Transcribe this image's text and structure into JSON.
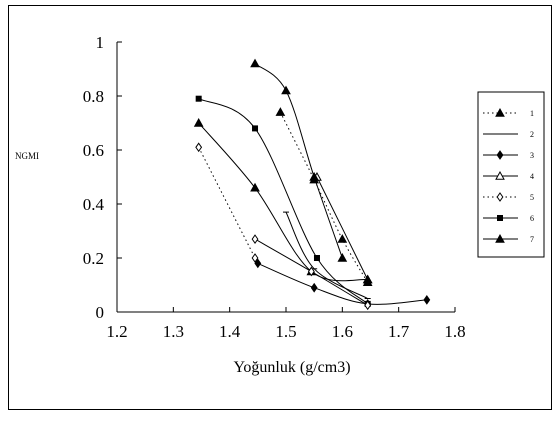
{
  "chart_data": {
    "type": "line",
    "title": "",
    "xlabel": "Yoğunluk (g/cm3)",
    "ylabel": "NGMI",
    "xlim": [
      1.2,
      1.8
    ],
    "ylim": [
      0,
      1
    ],
    "xticks": [
      "1.2",
      "1.3",
      "1.4",
      "1.5",
      "1.6",
      "1.7",
      "1.8"
    ],
    "yticks": [
      "0",
      "0.2",
      "0.4",
      "0.6",
      "0.8",
      "1"
    ],
    "grid": false,
    "legend_position": "right",
    "series": [
      {
        "name": "1",
        "marker": "triangle-filled",
        "dash": "dotted",
        "points": [
          [
            1.49,
            0.74
          ],
          [
            1.55,
            0.49
          ],
          [
            1.6,
            0.27
          ],
          [
            1.645,
            0.11
          ]
        ]
      },
      {
        "name": "2",
        "marker": "line",
        "dash": "solid",
        "points": [
          [
            1.5,
            0.37
          ],
          [
            1.55,
            0.16
          ],
          [
            1.645,
            0.05
          ]
        ]
      },
      {
        "name": "3",
        "marker": "diamond-filled",
        "dash": "solid",
        "points": [
          [
            1.45,
            0.18
          ],
          [
            1.55,
            0.09
          ],
          [
            1.645,
            0.03
          ],
          [
            1.75,
            0.045
          ]
        ]
      },
      {
        "name": "4",
        "marker": "triangle-open",
        "dash": "solid",
        "points": [
          [
            1.555,
            0.5
          ],
          [
            1.645,
            0.12
          ]
        ]
      },
      {
        "name": "5",
        "marker": "diamond-open",
        "dash": "dotted",
        "points": [
          [
            1.345,
            0.61
          ],
          [
            1.445,
            0.2
          ]
        ]
      },
      {
        "name": "6",
        "marker": "square-filled",
        "dash": "solid",
        "points": [
          [
            1.345,
            0.79
          ],
          [
            1.445,
            0.68
          ],
          [
            1.555,
            0.2
          ],
          [
            1.645,
            0.03
          ]
        ]
      },
      {
        "name": "7",
        "marker": "triangle-filled",
        "dash": "solid",
        "points": [
          [
            1.345,
            0.7
          ],
          [
            1.445,
            0.46
          ],
          [
            1.545,
            0.15
          ],
          [
            1.645,
            0.12
          ]
        ]
      },
      {
        "name": "",
        "marker": "triangle-filled",
        "dash": "solid",
        "points": [
          [
            1.445,
            0.92
          ],
          [
            1.5,
            0.82
          ],
          [
            1.55,
            0.5
          ],
          [
            1.6,
            0.2
          ]
        ]
      },
      {
        "name": "",
        "marker": "diamond-open",
        "dash": "solid",
        "points": [
          [
            1.445,
            0.27
          ],
          [
            1.545,
            0.15
          ],
          [
            1.645,
            0.025
          ]
        ]
      }
    ]
  }
}
